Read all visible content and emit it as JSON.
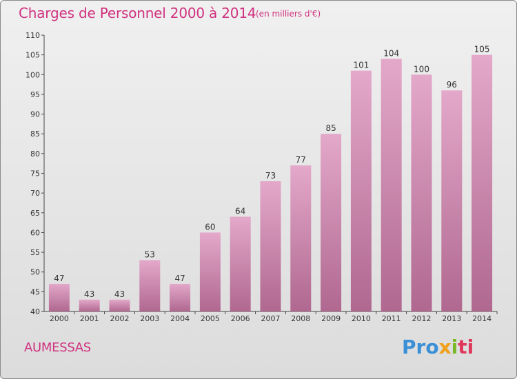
{
  "header": {
    "title": "Charges de Personnel 2000 à 2014",
    "subtitle": "(en milliers d'€)"
  },
  "footer": {
    "commune": "AUMESSAS",
    "logo_parts": [
      "Pro",
      "x",
      "i",
      "ti"
    ]
  },
  "colors": {
    "title": "#d0307f",
    "bar_top": "#e3a8ca",
    "bar_bottom": "#b06890",
    "logo_blue": "#3a8fd6",
    "logo_orange": "#f0a018",
    "logo_green": "#7ab828",
    "logo_red": "#e0385c"
  },
  "chart_data": {
    "type": "bar",
    "title": "Charges de Personnel 2000 à 2014",
    "subtitle": "(en milliers d'€)",
    "categories": [
      "2000",
      "2001",
      "2002",
      "2003",
      "2004",
      "2005",
      "2006",
      "2007",
      "2008",
      "2009",
      "2010",
      "2011",
      "2012",
      "2013",
      "2014"
    ],
    "values": [
      47,
      43,
      43,
      53,
      47,
      60,
      64,
      73,
      77,
      85,
      101,
      104,
      100,
      96,
      105
    ],
    "ylim": [
      40,
      110
    ],
    "yticks": [
      40,
      45,
      50,
      55,
      60,
      65,
      70,
      75,
      80,
      85,
      90,
      95,
      100,
      105,
      110
    ],
    "grid": false,
    "xlabel": "",
    "ylabel": ""
  }
}
